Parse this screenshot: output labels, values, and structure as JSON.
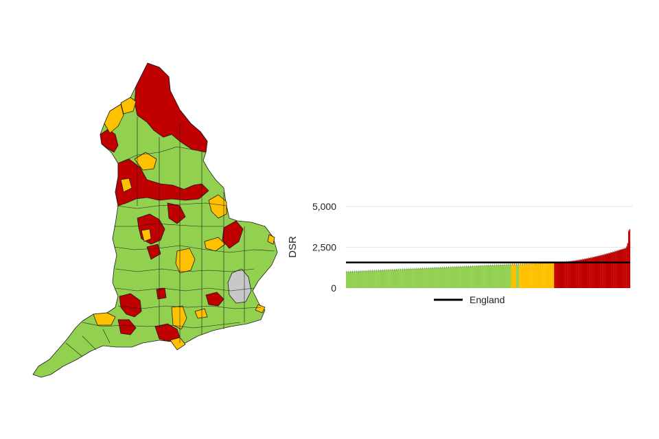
{
  "colors": {
    "green": "#92D050",
    "amber": "#FFC000",
    "red": "#C00000",
    "grey": "#C8C8C8",
    "outline": "#1A1A1A",
    "reference": "#000000",
    "gridline": "#E6E6E6",
    "error_bar": "#7F7F7F"
  },
  "map": {
    "region": "England",
    "legend": []
  },
  "chart_data": {
    "type": "bar",
    "title": "",
    "xlabel": "",
    "ylabel": "DSR",
    "ylim": [
      0,
      5000
    ],
    "yticks": [
      0,
      2500,
      5000
    ],
    "ytick_labels": [
      "0",
      "2,500",
      "5,000"
    ],
    "grid": true,
    "reference_line": {
      "name": "England",
      "value": 1570
    },
    "legend": {
      "position": "bottom",
      "entries": [
        "England"
      ]
    },
    "n_bars": 280,
    "segments": [
      {
        "category": "green",
        "count": 165,
        "start": 1000,
        "end": 1450
      },
      {
        "category": "amber",
        "count": 5,
        "start": 1450,
        "end": 1460
      },
      {
        "category": "green",
        "count": 3,
        "start": 1460,
        "end": 1465
      },
      {
        "category": "amber",
        "count": 35,
        "start": 1465,
        "end": 1560
      },
      {
        "category": "red",
        "count": 72,
        "start": 1560,
        "end": 2450
      }
    ],
    "tail_values": [
      2550,
      2750,
      3500,
      3600
    ],
    "error_bar_halfwidth": 60
  }
}
